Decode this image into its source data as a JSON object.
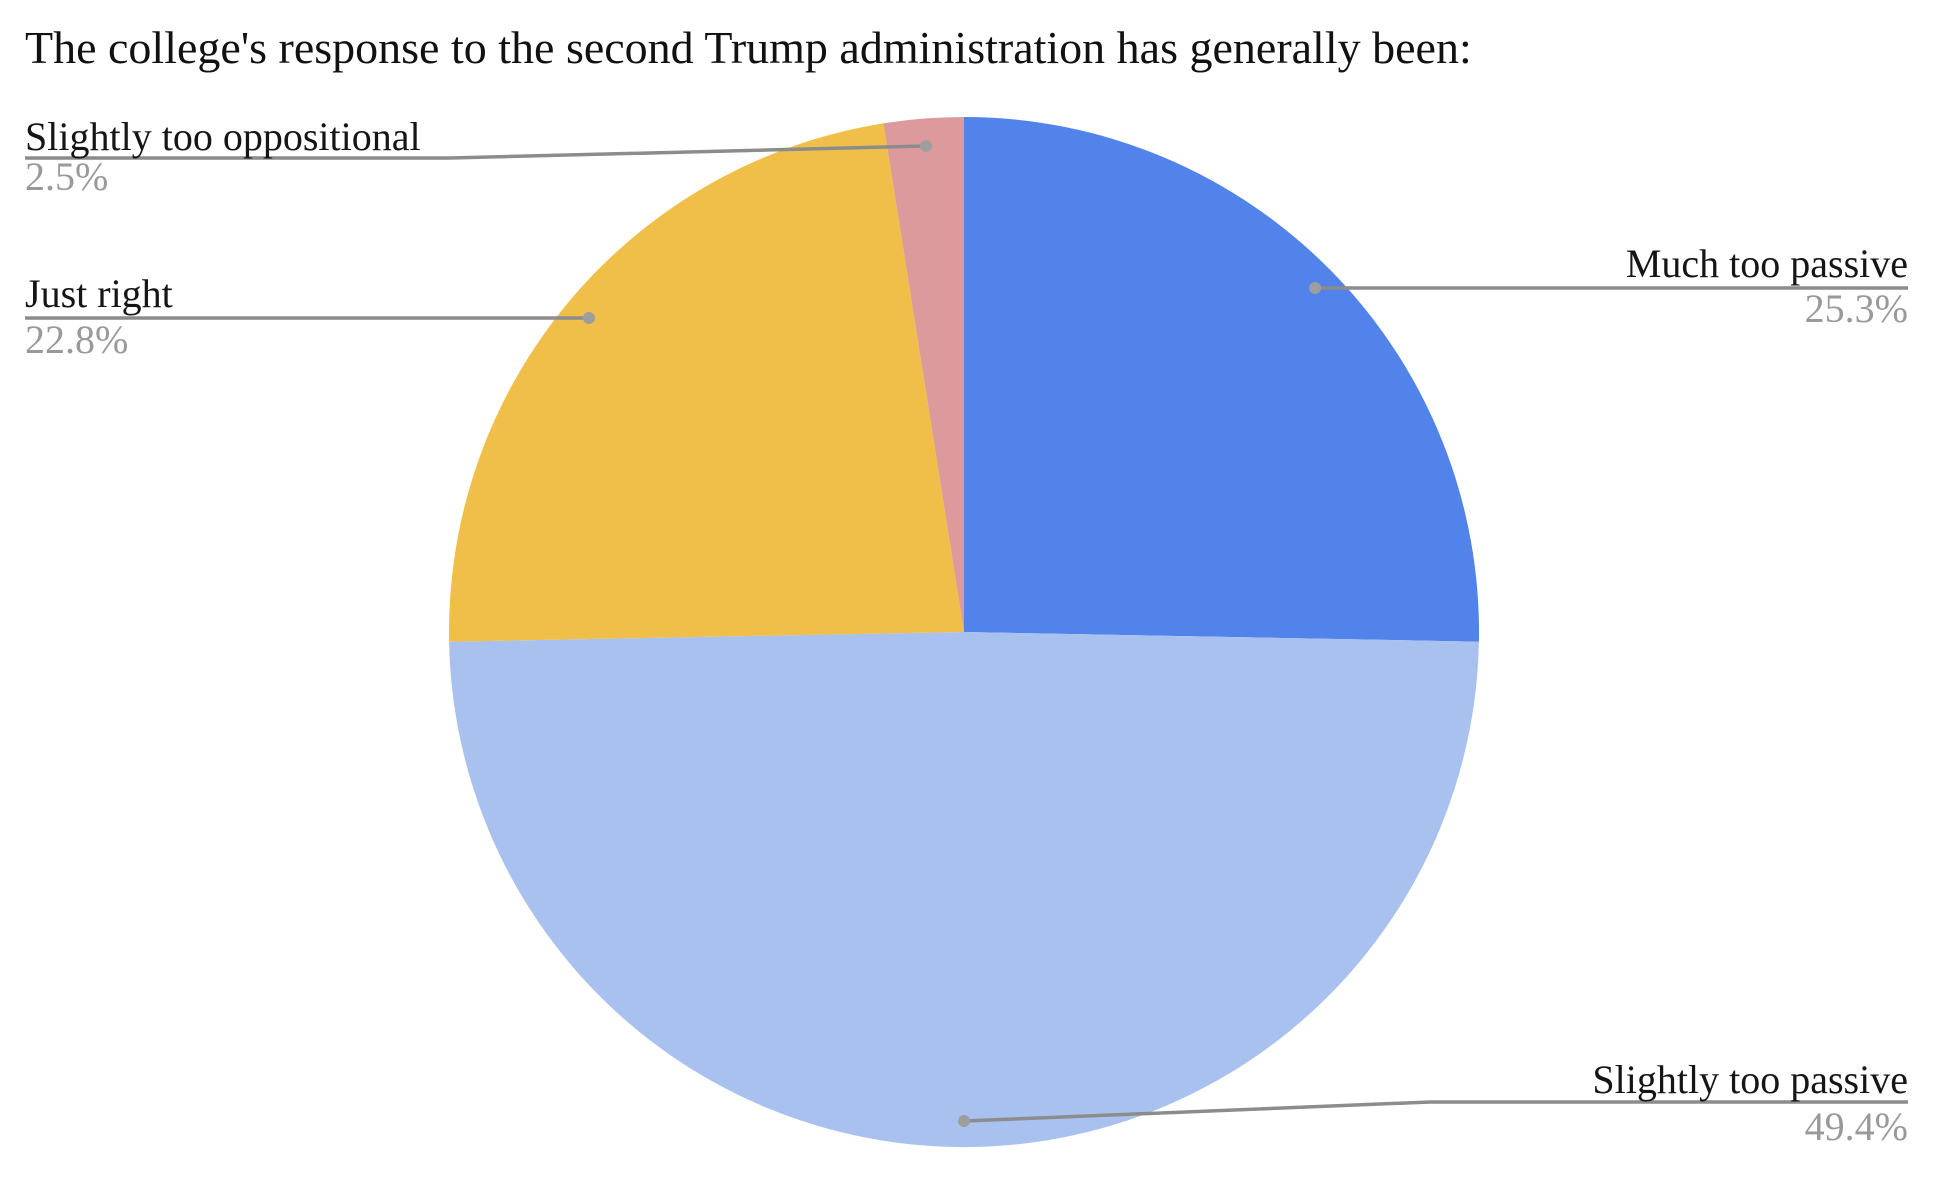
{
  "page": {
    "background_color": "#ffffff"
  },
  "chart_data": {
    "type": "pie",
    "title": "The college's response to the second Trump administration has generally been:",
    "legend_position": "none",
    "start_angle_deg": 0,
    "direction": "clockwise",
    "slices": [
      {
        "label": "Much too passive",
        "value": 25.3,
        "pct_label": "25.3%",
        "color": "#5283EA"
      },
      {
        "label": "Slightly too passive",
        "value": 49.4,
        "pct_label": "49.4%",
        "color": "#A9C1EF"
      },
      {
        "label": "Just right",
        "value": 22.8,
        "pct_label": "22.8%",
        "color": "#F0BF4A"
      },
      {
        "label": "Slightly too oppositional",
        "value": 2.5,
        "pct_label": "2.5%",
        "color": "#DD9A9C"
      }
    ],
    "label_style": {
      "name_color": "#151515",
      "pct_color": "#999999",
      "leader_line_color": "#8c8c8c"
    }
  }
}
